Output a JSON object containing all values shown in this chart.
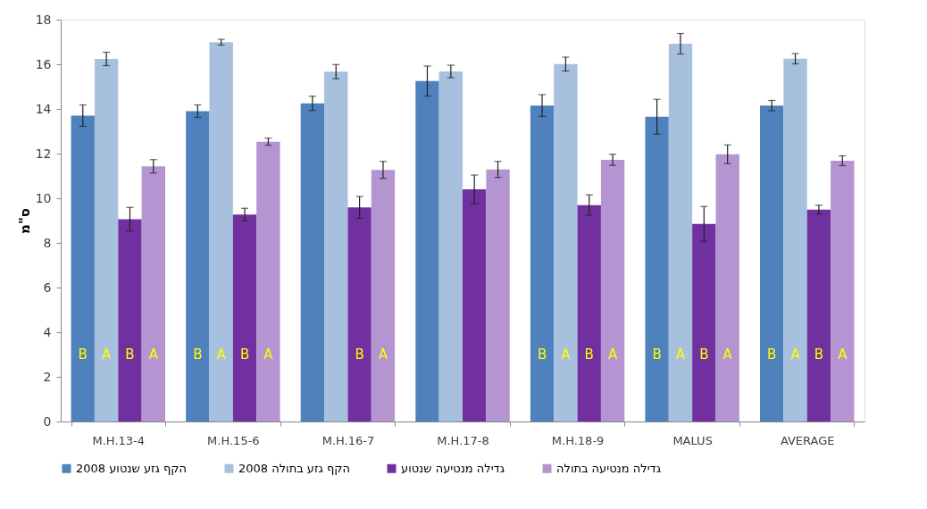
{
  "chart_data": {
    "type": "bar",
    "ylabel": "ס\"מ",
    "categories": [
      "M.H.13-4",
      "M.H.15-6",
      "M.H.16-7",
      "M.H.17-8",
      "M.H.18-9",
      "MALUS",
      "AVERAGE"
    ],
    "series": [
      {
        "name": "הקף גזע שנטוע 2008",
        "color": "#4f81bd",
        "values": [
          13.7,
          13.9,
          14.25,
          15.25,
          14.15,
          13.65,
          14.15
        ],
        "errors": [
          0.48,
          0.28,
          0.32,
          0.67,
          0.49,
          0.78,
          0.23
        ],
        "value_labels": [
          "B",
          "B",
          null,
          null,
          "B",
          "B",
          "B"
        ]
      },
      {
        "name": "הקף גזע בתולה 2008",
        "color": "#a7c0de",
        "values": [
          16.24,
          16.99,
          15.67,
          15.68,
          16.01,
          16.92,
          16.25
        ],
        "errors": [
          0.3,
          0.13,
          0.32,
          0.28,
          0.31,
          0.46,
          0.23
        ],
        "value_labels": [
          "A",
          "A",
          null,
          null,
          "A",
          "A",
          "A"
        ]
      },
      {
        "name": "גדילה מנטיעה שנטוע",
        "color": "#7030a0",
        "values": [
          9.06,
          9.27,
          9.59,
          10.4,
          9.69,
          8.85,
          9.49
        ],
        "errors": [
          0.53,
          0.28,
          0.49,
          0.64,
          0.46,
          0.78,
          0.2
        ],
        "value_labels": [
          "B",
          "B",
          "B",
          null,
          "B",
          "B",
          "B"
        ]
      },
      {
        "name": "גדילה מנטיעה בתולה",
        "color": "#b595d1",
        "values": [
          11.43,
          12.53,
          11.27,
          11.29,
          11.72,
          11.97,
          11.68
        ],
        "errors": [
          0.3,
          0.16,
          0.38,
          0.36,
          0.25,
          0.42,
          0.22
        ],
        "value_labels": [
          "A",
          "A",
          "A",
          null,
          "A",
          "A",
          "A"
        ]
      }
    ],
    "ylim": [
      0,
      18
    ],
    "yticks": [
      0,
      2,
      4,
      6,
      8,
      10,
      12,
      14,
      16,
      18
    ],
    "legend": "bottom"
  }
}
